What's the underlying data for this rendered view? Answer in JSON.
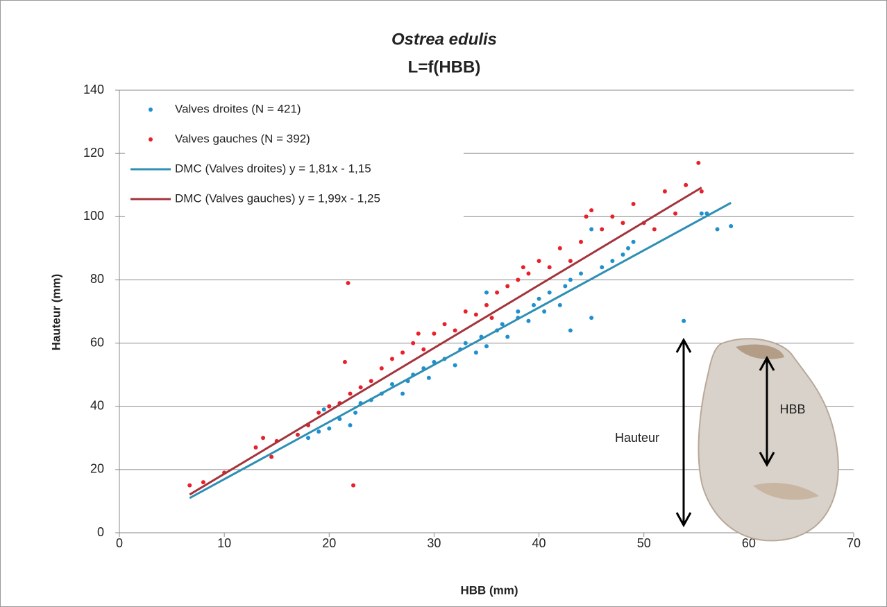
{
  "chart_data": {
    "type": "scatter",
    "title": "Ostrea edulis",
    "subtitle": "L=f(HBB)",
    "x_label": "HBB (mm)",
    "y_label": "Hauteur (mm)",
    "xlim": [
      0,
      70
    ],
    "ylim": [
      0,
      140
    ],
    "xticks": [
      0,
      10,
      20,
      30,
      40,
      50,
      60,
      70
    ],
    "yticks": [
      0,
      20,
      40,
      60,
      80,
      100,
      120,
      140
    ],
    "grid": "y",
    "legend": "upper left",
    "annotations": [
      "Hauteur",
      "HBB"
    ],
    "series": [
      {
        "name": "Valves droites (N = 421)",
        "kind": "markers",
        "color": "#1f8fd0",
        "x": [
          18,
          19,
          19.5,
          20,
          21,
          22,
          22.5,
          23,
          24,
          25,
          26,
          27,
          27.5,
          28,
          29,
          29.5,
          30,
          31,
          32,
          32.5,
          33,
          34,
          34.5,
          35,
          35,
          36,
          36.5,
          37,
          38,
          38,
          39,
          39.5,
          40,
          40.5,
          41,
          42,
          42.5,
          43,
          43,
          44,
          45,
          45,
          46,
          47,
          48,
          48.5,
          49,
          53.8,
          55.5,
          56,
          57,
          58.3
        ],
        "values": [
          30,
          32,
          39,
          33,
          36,
          34,
          38,
          41,
          42,
          44,
          47,
          44,
          48,
          50,
          52,
          49,
          54,
          55,
          53,
          58,
          60,
          57,
          62,
          59,
          76,
          64,
          66,
          62,
          68,
          70,
          67,
          72,
          74,
          70,
          76,
          72,
          78,
          64,
          80,
          82,
          68,
          96,
          84,
          86,
          88,
          90,
          92,
          67,
          101,
          101,
          96,
          97
        ]
      },
      {
        "name": "Valves gauches (N = 392)",
        "kind": "markers",
        "color": "#e8202a",
        "x": [
          6.7,
          8,
          10,
          13,
          13.7,
          14.5,
          15,
          17,
          18,
          19,
          20,
          21,
          21.5,
          21.8,
          22,
          22.3,
          23,
          24,
          25,
          26,
          27,
          28,
          28.5,
          29,
          30,
          31,
          32,
          33,
          34,
          35,
          35.5,
          36,
          37,
          38,
          38.5,
          39,
          40,
          41,
          42,
          43,
          44,
          44.5,
          45,
          46,
          47,
          48,
          49,
          50,
          51,
          52,
          53,
          54,
          55.2,
          55.5
        ],
        "values": [
          15,
          16,
          19,
          27,
          30,
          24,
          29,
          31,
          34,
          38,
          40,
          41,
          54,
          79,
          44,
          15,
          46,
          48,
          52,
          55,
          57,
          60,
          63,
          58,
          63,
          66,
          64,
          70,
          69,
          72,
          68,
          76,
          78,
          80,
          84,
          82,
          86,
          84,
          90,
          86,
          92,
          100,
          102,
          96,
          100,
          98,
          104,
          98,
          96,
          108,
          101,
          110,
          117,
          108
        ]
      },
      {
        "name": "DMC (Valves droites) y = 1,81x - 1,15",
        "kind": "line",
        "color": "#2e8fb5",
        "x": [
          6.7,
          58.3
        ],
        "values": [
          10.98,
          104.37
        ]
      },
      {
        "name": "DMC (Valves gauches) y = 1,99x - 1,25",
        "kind": "line",
        "color": "#a3343c",
        "x": [
          6.7,
          55.5
        ],
        "values": [
          12.08,
          109.2
        ]
      }
    ]
  }
}
